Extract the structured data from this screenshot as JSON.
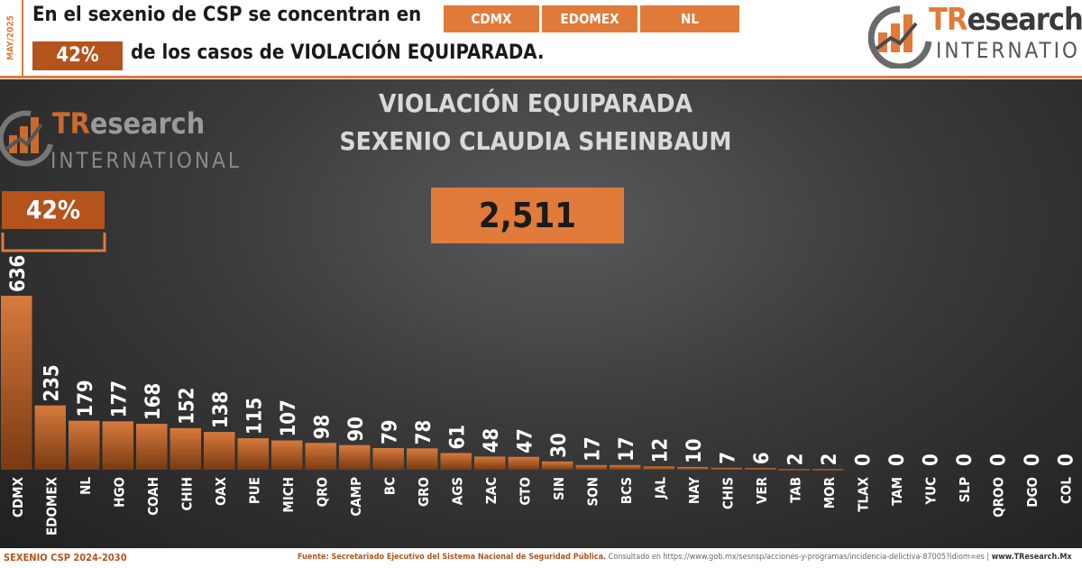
{
  "header": {
    "date": "MAY/2025",
    "line1": "En el sexenio de CSP se concentran en",
    "share": "42%",
    "line2": "de los casos de VIOLACIÓN EQUIPARADA.",
    "states": [
      "CDMX",
      "EDOMEX",
      "NL"
    ]
  },
  "logo": {
    "brand_tr": "TR",
    "brand_rest": "esearch",
    "sub": "INTERNATIONAL"
  },
  "chart_data": {
    "type": "bar",
    "title": "VIOLACIÓN EQUIPARADA",
    "subtitle": "SEXENIO CLAUDIA SHEINBAUM",
    "total": "2,511",
    "highlight_share": "42%",
    "categories": [
      "CDMX",
      "EDOMEX",
      "NL",
      "HGO",
      "COAH",
      "CHIH",
      "OAX",
      "PUE",
      "MICH",
      "QRO",
      "CAMP",
      "BC",
      "GRO",
      "AGS",
      "ZAC",
      "GTO",
      "SIN",
      "SON",
      "BCS",
      "JAL",
      "NAY",
      "CHIS",
      "VER",
      "TAB",
      "MOR",
      "TLAX",
      "TAM",
      "YUC",
      "SLP",
      "QROO",
      "DGO",
      "COL"
    ],
    "values": [
      636,
      235,
      179,
      177,
      168,
      152,
      138,
      115,
      107,
      98,
      90,
      79,
      78,
      61,
      48,
      47,
      30,
      17,
      17,
      12,
      10,
      7,
      6,
      2,
      2,
      0,
      0,
      0,
      0,
      0,
      0,
      0
    ],
    "ylim": [
      0,
      636
    ],
    "grid": false
  },
  "footer": {
    "left": "SEXENIO CSP 2024-2030",
    "source_label": "Fuente: Secretariado Ejecutivo del Sistema Nacional de Seguridad Pública.",
    "consulted": "Consultado en https://www.gob.mx/sesnsp/acciones-y-programas/incidencia-delictiva-87005?idiom=es |",
    "site": "www.TResearch.Mx"
  },
  "colors": {
    "accent": "#e07b39",
    "dark_accent": "#b5531c",
    "bar_top": "#d77a3d",
    "bar_bottom": "#7a3a12"
  }
}
